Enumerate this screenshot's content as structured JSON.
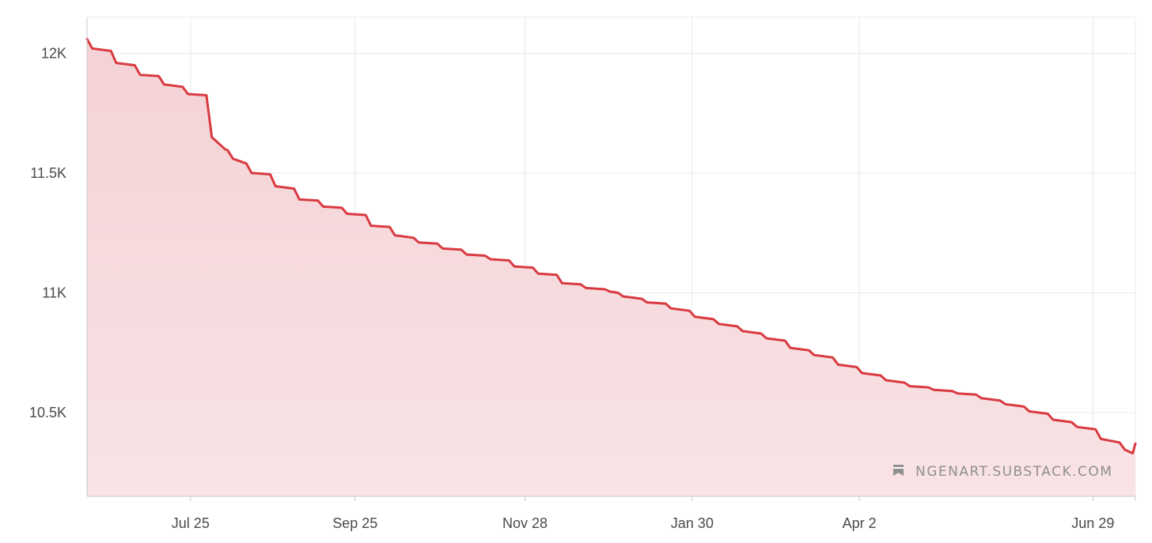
{
  "chart_data": {
    "type": "area",
    "title": "",
    "xlabel": "",
    "ylabel": "",
    "x_tick_labels": [
      "Jul 25",
      "Sep 25",
      "Nov 28",
      "Jan 30",
      "Apr 2",
      "Jun 29"
    ],
    "y_tick_labels": [
      "12K",
      "11.5K",
      "11K",
      "10.5K"
    ],
    "y_ticks": [
      12000,
      11500,
      11000,
      10500
    ],
    "ylim": [
      10150,
      12150
    ],
    "xlim": [
      "2023-06-16",
      "2024-07-15"
    ],
    "grid": true,
    "colors": {
      "line": "#d93a40",
      "fill_top": "#f4d2d5",
      "fill_bottom": "#f8e3e5",
      "grid": "#e9e9e9",
      "axis": "#c8c8c8"
    },
    "series": [
      {
        "x": [
          "2023-06-16",
          "2023-06-18",
          "2023-06-25",
          "2023-06-27",
          "2023-07-04",
          "2023-07-06",
          "2023-07-13",
          "2023-07-15",
          "2023-07-22",
          "2023-07-24",
          "2023-07-31",
          "2023-08-02",
          "2023-08-07",
          "2023-08-08",
          "2023-08-10",
          "2023-08-15",
          "2023-08-17",
          "2023-08-24",
          "2023-08-26",
          "2023-09-02",
          "2023-09-04",
          "2023-09-11",
          "2023-09-13",
          "2023-09-20",
          "2023-09-22",
          "2023-09-29",
          "2023-10-01",
          "2023-10-08",
          "2023-10-10",
          "2023-10-17",
          "2023-10-19",
          "2023-10-26",
          "2023-10-28",
          "2023-11-04",
          "2023-11-06",
          "2023-11-13",
          "2023-11-15",
          "2023-11-22",
          "2023-11-24",
          "2023-12-01",
          "2023-12-03",
          "2023-12-10",
          "2023-12-12",
          "2023-12-19",
          "2023-12-21",
          "2023-12-28",
          "2023-12-30",
          "2024-01-02",
          "2024-01-04",
          "2024-01-11",
          "2024-01-13",
          "2024-01-20",
          "2024-01-22",
          "2024-01-29",
          "2024-01-31",
          "2024-02-07",
          "2024-02-09",
          "2024-02-16",
          "2024-02-18",
          "2024-02-25",
          "2024-02-27",
          "2024-03-05",
          "2024-03-07",
          "2024-03-14",
          "2024-03-16",
          "2024-03-23",
          "2024-03-25",
          "2024-04-01",
          "2024-04-03",
          "2024-04-10",
          "2024-04-12",
          "2024-04-19",
          "2024-04-21",
          "2024-04-28",
          "2024-04-30",
          "2024-05-07",
          "2024-05-09",
          "2024-05-16",
          "2024-05-18",
          "2024-05-25",
          "2024-05-27",
          "2024-06-03",
          "2024-06-05",
          "2024-06-12",
          "2024-06-14",
          "2024-06-21",
          "2024-06-23",
          "2024-06-30",
          "2024-07-02",
          "2024-07-09",
          "2024-07-11",
          "2024-07-14",
          "2024-07-15"
        ],
        "y": [
          12060,
          12020,
          12010,
          11960,
          11950,
          11910,
          11905,
          11870,
          11860,
          11830,
          11825,
          11650,
          11600,
          11595,
          11560,
          11540,
          11500,
          11495,
          11445,
          11435,
          11390,
          11385,
          11360,
          11355,
          11330,
          11325,
          11280,
          11275,
          11240,
          11230,
          11210,
          11205,
          11185,
          11180,
          11160,
          11155,
          11140,
          11135,
          11110,
          11105,
          11080,
          11075,
          11040,
          11035,
          11020,
          11015,
          11005,
          11000,
          10985,
          10975,
          10960,
          10955,
          10935,
          10925,
          10900,
          10890,
          10870,
          10860,
          10840,
          10830,
          10810,
          10800,
          10770,
          10760,
          10740,
          10730,
          10700,
          10690,
          10665,
          10655,
          10635,
          10625,
          10610,
          10605,
          10595,
          10590,
          10580,
          10575,
          10560,
          10550,
          10535,
          10525,
          10505,
          10495,
          10470,
          10460,
          10440,
          10430,
          10390,
          10375,
          10345,
          10330,
          10370
        ]
      }
    ],
    "watermark": "NGENART.SUBSTACK.COM",
    "watermark_icon": "bookmark-icon"
  }
}
